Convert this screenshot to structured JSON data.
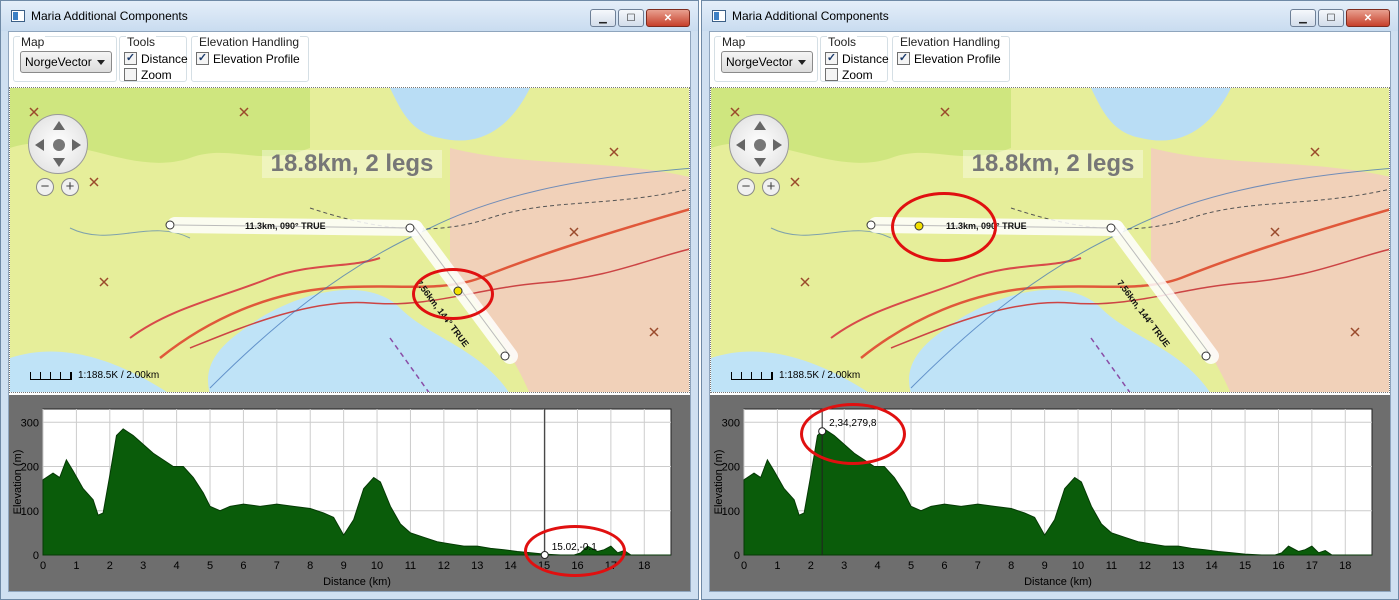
{
  "windows": [
    {
      "title": "Maria Additional Components",
      "caption_buttons": {
        "minimize": "▁",
        "maximize": "☐",
        "close": "✕"
      },
      "toolbar": {
        "map_group_label": "Map",
        "map_select_value": "NorgeVector",
        "tools_group_label": "Tools",
        "tool_distance_label": "Distance",
        "tool_distance_checked": true,
        "tool_zoom_label": "Zoom",
        "tool_zoom_checked": false,
        "elevation_group_label": "Elevation Handling",
        "elevation_profile_label": "Elevation Profile",
        "elevation_profile_checked": true
      },
      "map": {
        "headline": "18.8km, 2 legs",
        "leg1_label": "11.3km, 090° TRUE",
        "leg2_label": "7.56km, 144° TRUE",
        "scale_text": "1:188.5K / 2.00km",
        "zoom_out": "−",
        "zoom_in": "+"
      },
      "chart_data": {
        "type": "area",
        "xlabel": "Distance (km)",
        "ylabel": "Elevation (m)",
        "xlim": [
          0,
          18.8
        ],
        "ylim": [
          0,
          330
        ],
        "x_ticks": [
          "0",
          "1",
          "2",
          "3",
          "4",
          "5",
          "6",
          "7",
          "8",
          "9",
          "10",
          "11",
          "12",
          "13",
          "14",
          "15",
          "16",
          "17",
          "18"
        ],
        "y_ticks": [
          "0",
          "100",
          "200",
          "300"
        ],
        "grid": true,
        "series": [
          {
            "x": [
              0,
              0.3,
              0.5,
              0.7,
              0.9,
              1.2,
              1.5,
              1.65,
              1.8,
              2.0,
              2.2,
              2.4,
              2.7,
              3.0,
              3.3,
              3.6,
              3.9,
              4.2,
              4.5,
              4.8,
              5.0,
              5.3,
              5.6,
              6.0,
              6.5,
              7.0,
              7.5,
              8.0,
              8.4,
              8.7,
              9.0,
              9.3,
              9.6,
              9.9,
              10.1,
              10.4,
              10.7,
              11.0,
              11.4,
              11.8,
              12.2,
              12.6,
              13.0,
              13.4,
              13.8,
              14.2,
              14.6,
              15.0,
              15.5,
              15.9,
              16.1,
              16.3,
              16.6,
              16.8,
              17.0,
              17.2,
              17.4,
              17.6,
              18.0,
              18.8
            ],
            "y": [
              170,
              185,
              175,
              215,
              190,
              150,
              125,
              90,
              95,
              180,
              270,
              285,
              270,
              250,
              230,
              215,
              200,
              200,
              175,
              140,
              110,
              100,
              110,
              115,
              110,
              115,
              110,
              105,
              95,
              85,
              45,
              80,
              150,
              175,
              165,
              110,
              70,
              50,
              40,
              30,
              25,
              20,
              20,
              15,
              12,
              8,
              5,
              2,
              0,
              0,
              5,
              20,
              8,
              12,
              20,
              5,
              10,
              0,
              0,
              0
            ]
          }
        ]
      },
      "marker": {
        "label": "15.02,-0.1",
        "x": 15.02,
        "y": -0.1
      }
    },
    {
      "title": "Maria Additional Components",
      "caption_buttons": {
        "minimize": "▁",
        "maximize": "☐",
        "close": "✕"
      },
      "toolbar": {
        "map_group_label": "Map",
        "map_select_value": "NorgeVector",
        "tools_group_label": "Tools",
        "tool_distance_label": "Distance",
        "tool_distance_checked": true,
        "tool_zoom_label": "Zoom",
        "tool_zoom_checked": false,
        "elevation_group_label": "Elevation Handling",
        "elevation_profile_label": "Elevation Profile",
        "elevation_profile_checked": true
      },
      "map": {
        "headline": "18.8km, 2 legs",
        "leg1_label": "11.3km, 090° TRUE",
        "leg2_label": "7.56km, 144° TRUE",
        "scale_text": "1:188.5K / 2.00km",
        "zoom_out": "−",
        "zoom_in": "+"
      },
      "chart_data": {
        "type": "area",
        "xlabel": "Distance (km)",
        "ylabel": "Elevation (m)",
        "xlim": [
          0,
          18.8
        ],
        "ylim": [
          0,
          330
        ],
        "x_ticks": [
          "0",
          "1",
          "2",
          "3",
          "4",
          "5",
          "6",
          "7",
          "8",
          "9",
          "10",
          "11",
          "12",
          "13",
          "14",
          "15",
          "16",
          "17",
          "18"
        ],
        "y_ticks": [
          "0",
          "100",
          "200",
          "300"
        ],
        "grid": true,
        "series": [
          {
            "x": [
              0,
              0.3,
              0.5,
              0.7,
              0.9,
              1.2,
              1.5,
              1.65,
              1.8,
              2.0,
              2.2,
              2.4,
              2.7,
              3.0,
              3.3,
              3.6,
              3.9,
              4.2,
              4.5,
              4.8,
              5.0,
              5.3,
              5.6,
              6.0,
              6.5,
              7.0,
              7.5,
              8.0,
              8.4,
              8.7,
              9.0,
              9.3,
              9.6,
              9.9,
              10.1,
              10.4,
              10.7,
              11.0,
              11.4,
              11.8,
              12.2,
              12.6,
              13.0,
              13.4,
              13.8,
              14.2,
              14.6,
              15.0,
              15.5,
              15.9,
              16.1,
              16.3,
              16.6,
              16.8,
              17.0,
              17.2,
              17.4,
              17.6,
              18.0,
              18.8
            ],
            "y": [
              170,
              185,
              175,
              215,
              190,
              150,
              125,
              90,
              95,
              180,
              270,
              285,
              270,
              250,
              230,
              215,
              200,
              200,
              175,
              140,
              110,
              100,
              110,
              115,
              110,
              115,
              110,
              105,
              95,
              85,
              45,
              80,
              150,
              175,
              165,
              110,
              70,
              50,
              40,
              30,
              25,
              20,
              20,
              15,
              12,
              8,
              5,
              2,
              0,
              0,
              5,
              20,
              8,
              12,
              20,
              5,
              10,
              0,
              0,
              0
            ]
          }
        ]
      },
      "marker": {
        "label": "2,34,279,8",
        "x": 2.34,
        "y": 279.8
      }
    }
  ]
}
